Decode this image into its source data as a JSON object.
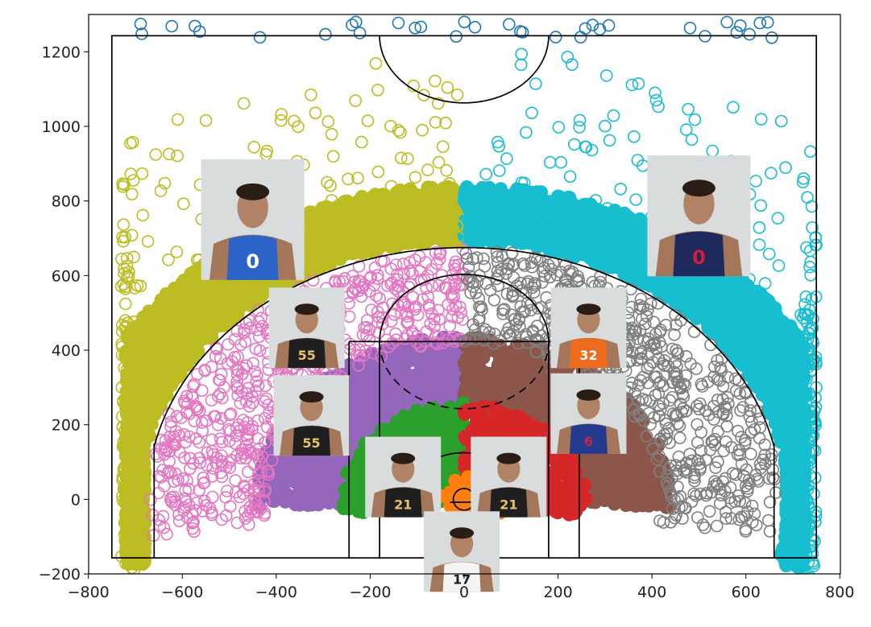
{
  "chart_data": {
    "type": "scatter",
    "title": "",
    "xlabel": "",
    "ylabel": "",
    "xlim": [
      -800,
      800
    ],
    "ylim": [
      -200,
      1280
    ],
    "xticks": [
      -800,
      -600,
      -400,
      -200,
      0,
      200,
      400,
      600,
      800
    ],
    "yticks": [
      -200,
      0,
      200,
      400,
      600,
      800,
      1000,
      1200
    ],
    "xtick_labels": [
      "−800",
      "−600",
      "−400",
      "−200",
      "0",
      "200",
      "400",
      "600",
      "800"
    ],
    "ytick_labels": [
      "−200",
      "0",
      "200",
      "400",
      "600",
      "800",
      "1000",
      "1200"
    ],
    "grid": false,
    "legend": "none",
    "court": {
      "boundary": {
        "x": [
          -750,
          750
        ],
        "y": [
          -157,
          1243
        ]
      },
      "paint_outer_x": [
        -245,
        245
      ],
      "paint_inner_x": [
        -180,
        180
      ],
      "free_throw_line_y": 423,
      "free_throw_circle_radius": 180,
      "three_point_radius": 675,
      "corner_three_x": 660,
      "corner_three_top_y": 150,
      "half_court_y": 1243,
      "center_circle_radius": 180,
      "restricted_radius": 125,
      "hoop_radius": 23
    },
    "series": [
      {
        "zone": "corner-left-and-left-wing-three",
        "color": "#bcbd22",
        "shape": "open circles",
        "x_range": [
          -720,
          0
        ],
        "y_range": [
          -100,
          1220
        ]
      },
      {
        "zone": "right-wing-and-corner-right-three",
        "color": "#17becf",
        "shape": "open circles",
        "x_range": [
          0,
          730
        ],
        "y_range": [
          -100,
          1280
        ]
      },
      {
        "zone": "left-midrange",
        "color": "#e377c2",
        "shape": "open circles",
        "x_range": [
          -680,
          0
        ],
        "y_range": [
          -80,
          620
        ]
      },
      {
        "zone": "right-midrange",
        "color": "#7f7f7f",
        "shape": "open circles",
        "x_range": [
          0,
          660
        ],
        "y_range": [
          -80,
          620
        ]
      },
      {
        "zone": "left-short-midrange",
        "color": "#9467bd",
        "shape": "filled",
        "x_range": [
          -460,
          0
        ],
        "y_range": [
          -20,
          420
        ]
      },
      {
        "zone": "right-short-midrange",
        "color": "#8c564b",
        "shape": "filled",
        "x_range": [
          0,
          460
        ],
        "y_range": [
          -20,
          420
        ]
      },
      {
        "zone": "left-paint",
        "color": "#2ca02c",
        "shape": "filled",
        "x_range": [
          -330,
          0
        ],
        "y_range": [
          -60,
          210
        ]
      },
      {
        "zone": "right-paint",
        "color": "#d62728",
        "shape": "filled",
        "x_range": [
          0,
          330
        ],
        "y_range": [
          -60,
          210
        ]
      },
      {
        "zone": "rim",
        "color": "#ff7f0e",
        "shape": "filled",
        "x_range": [
          -60,
          150
        ],
        "y_range": [
          -40,
          90
        ]
      },
      {
        "zone": "backcourt-heaves",
        "color": "#1f77b4",
        "shape": "open circles",
        "x_range": [
          -800,
          800
        ],
        "y_range": [
          1230,
          1300
        ]
      }
    ],
    "player_markers": [
      {
        "zone": "left three",
        "jersey": "0",
        "kit": "blue",
        "at": [
          -450,
          750
        ]
      },
      {
        "zone": "right three",
        "jersey": "0",
        "kit": "navy-red",
        "at": [
          500,
          760
        ]
      },
      {
        "zone": "left midrange",
        "jersey": "55",
        "kit": "black",
        "at": [
          -335,
          460
        ]
      },
      {
        "zone": "right midrange",
        "jersey": "32",
        "kit": "orange",
        "at": [
          265,
          460
        ]
      },
      {
        "zone": "left short midrange",
        "jersey": "55",
        "kit": "black",
        "at": [
          -325,
          225
        ]
      },
      {
        "zone": "right short midrange",
        "jersey": "6",
        "kit": "blue-red",
        "at": [
          265,
          230
        ]
      },
      {
        "zone": "left paint",
        "jersey": "21",
        "kit": "black",
        "at": [
          -130,
          60
        ]
      },
      {
        "zone": "right paint",
        "jersey": "21",
        "kit": "black",
        "at": [
          95,
          60
        ]
      },
      {
        "zone": "rim",
        "jersey": "17",
        "kit": "white",
        "at": [
          -5,
          -140
        ]
      }
    ]
  }
}
